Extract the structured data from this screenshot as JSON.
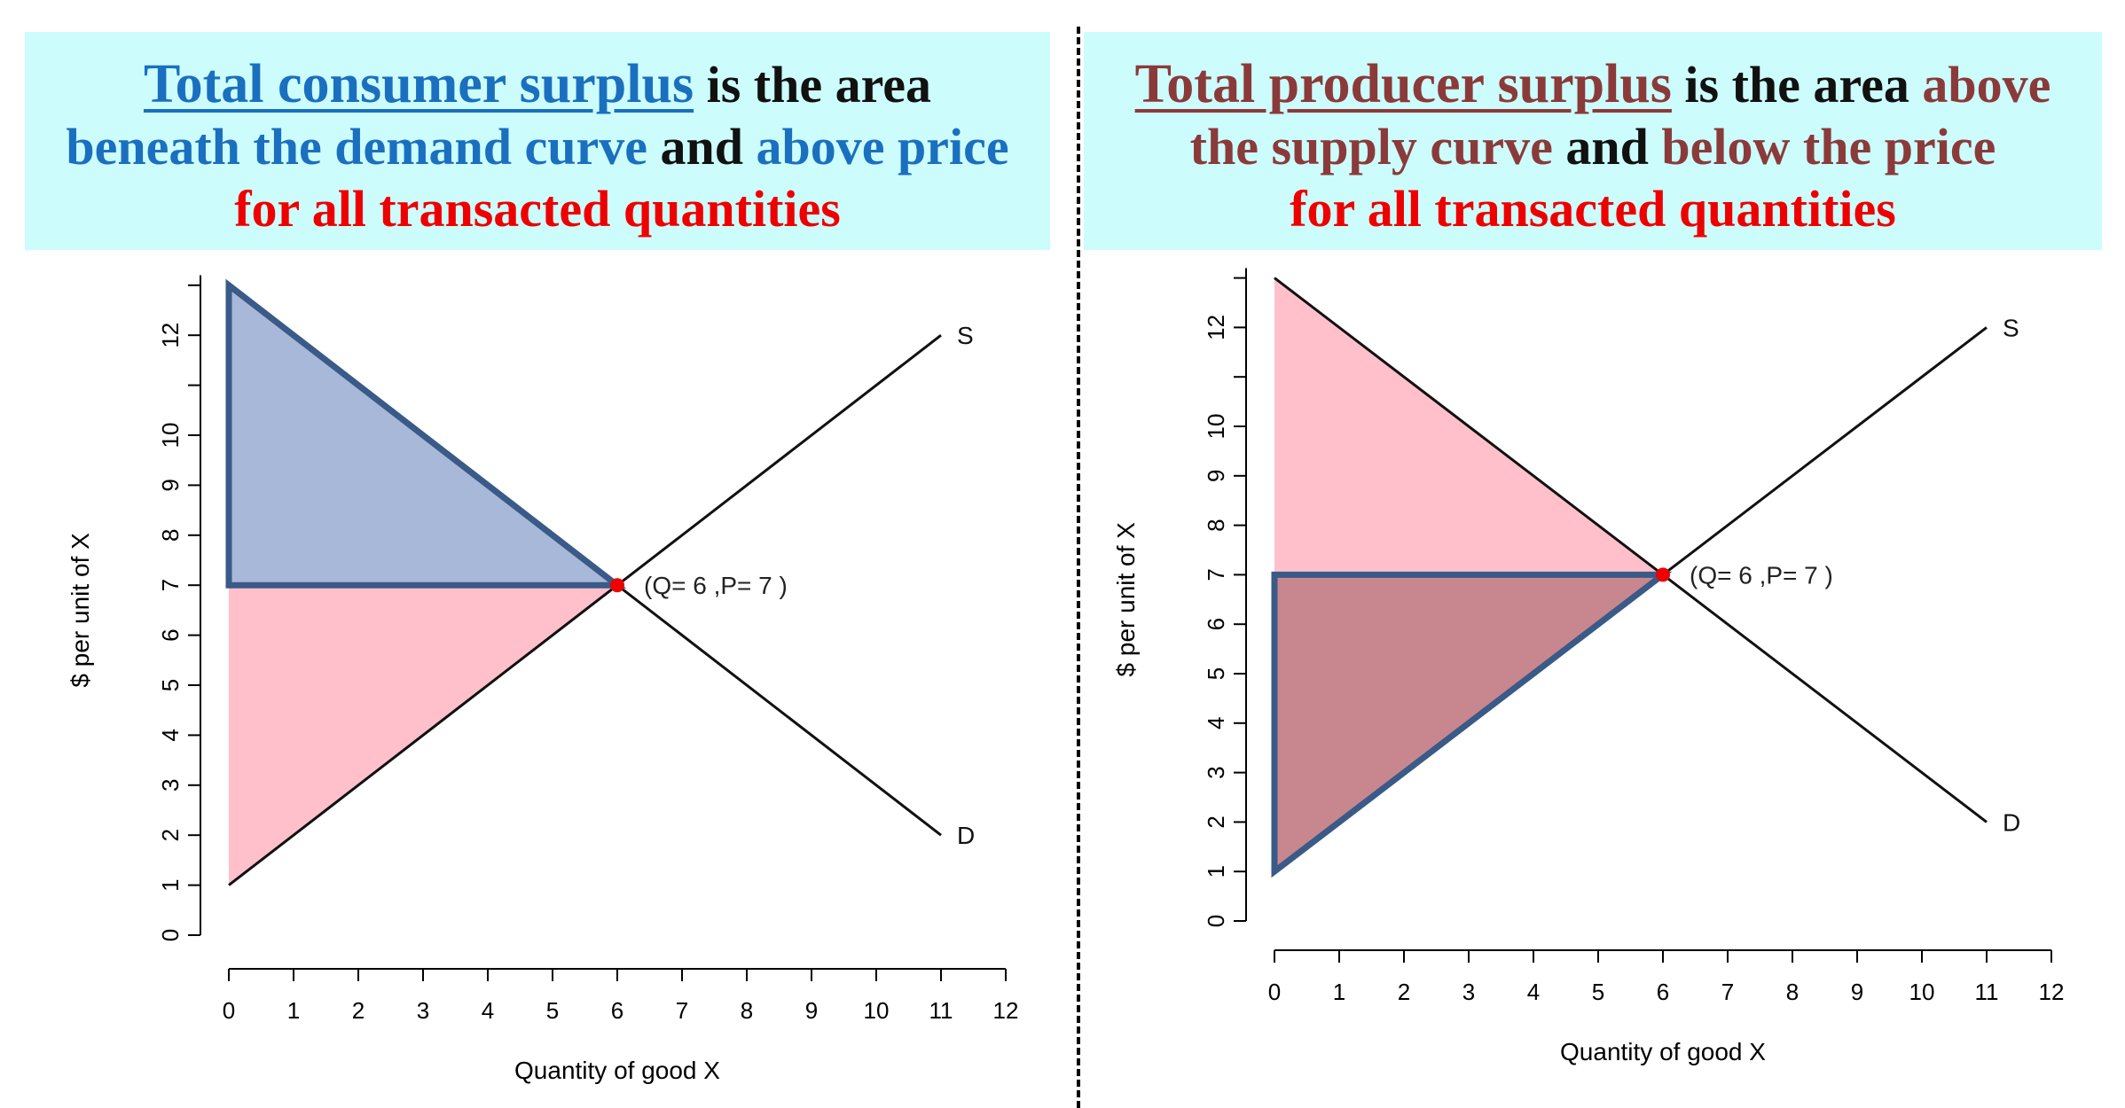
{
  "banners": {
    "left": {
      "title": "Total consumer surplus",
      "line1_rest": " is the area",
      "line2_a": "beneath the demand curve",
      "line2_b": " and ",
      "line2_c": "above price",
      "line3": "for all transacted quantities"
    },
    "right": {
      "title": "Total producer surplus",
      "line1_b": " is the area ",
      "line1_c": "above",
      "line2_a": "the supply curve",
      "line2_b": " and ",
      "line2_c": "below the price",
      "line3": "for all transacted quantities"
    }
  },
  "colors": {
    "banner_bg": "#ccfcfc",
    "consumer_blue": "#1a6fbf",
    "producer_brown": "#8b3a3a",
    "black": "#111111",
    "red": "#ee0000",
    "pink": "#ffc0cb",
    "cs_fill": "#a8b8d8",
    "ps_fill": "#c8878e",
    "outline": "#3a5a88"
  },
  "chart_data": [
    {
      "type": "line",
      "xlabel": "Quantity of good X",
      "ylabel": "$ per unit of X",
      "xlim": [
        0,
        12
      ],
      "ylim": [
        0,
        13
      ],
      "x_ticks": [
        0,
        1,
        2,
        3,
        4,
        5,
        6,
        7,
        8,
        9,
        10,
        11,
        12
      ],
      "y_ticks": [
        0,
        1,
        2,
        3,
        4,
        5,
        6,
        7,
        8,
        9,
        10,
        12
      ],
      "series": [
        {
          "name": "S",
          "x": [
            0,
            11
          ],
          "y": [
            1,
            12
          ]
        },
        {
          "name": "D",
          "x": [
            0,
            11
          ],
          "y": [
            13,
            2
          ]
        }
      ],
      "equilibrium": {
        "x": 6,
        "y": 7,
        "label": "(Q= 6 ,P= 7 )"
      },
      "highlight": "consumer_surplus",
      "highlight_polygon": [
        [
          0,
          13
        ],
        [
          6,
          7
        ],
        [
          0,
          7
        ]
      ],
      "other_polygon": [
        [
          0,
          7
        ],
        [
          6,
          7
        ],
        [
          0,
          1
        ]
      ]
    },
    {
      "type": "line",
      "xlabel": "Quantity of good X",
      "ylabel": "$ per unit of X",
      "xlim": [
        0,
        12
      ],
      "ylim": [
        0,
        13
      ],
      "x_ticks": [
        0,
        1,
        2,
        3,
        4,
        5,
        6,
        7,
        8,
        9,
        10,
        11,
        12
      ],
      "y_ticks": [
        0,
        1,
        2,
        3,
        4,
        5,
        6,
        7,
        8,
        9,
        10,
        12
      ],
      "series": [
        {
          "name": "S",
          "x": [
            0,
            11
          ],
          "y": [
            1,
            12
          ]
        },
        {
          "name": "D",
          "x": [
            0,
            11
          ],
          "y": [
            13,
            2
          ]
        }
      ],
      "equilibrium": {
        "x": 6,
        "y": 7,
        "label": "(Q= 6 ,P= 7 )"
      },
      "highlight": "producer_surplus",
      "highlight_polygon": [
        [
          0,
          7
        ],
        [
          6,
          7
        ],
        [
          0,
          1
        ]
      ],
      "other_polygon": [
        [
          0,
          13
        ],
        [
          6,
          7
        ],
        [
          0,
          7
        ]
      ]
    }
  ]
}
